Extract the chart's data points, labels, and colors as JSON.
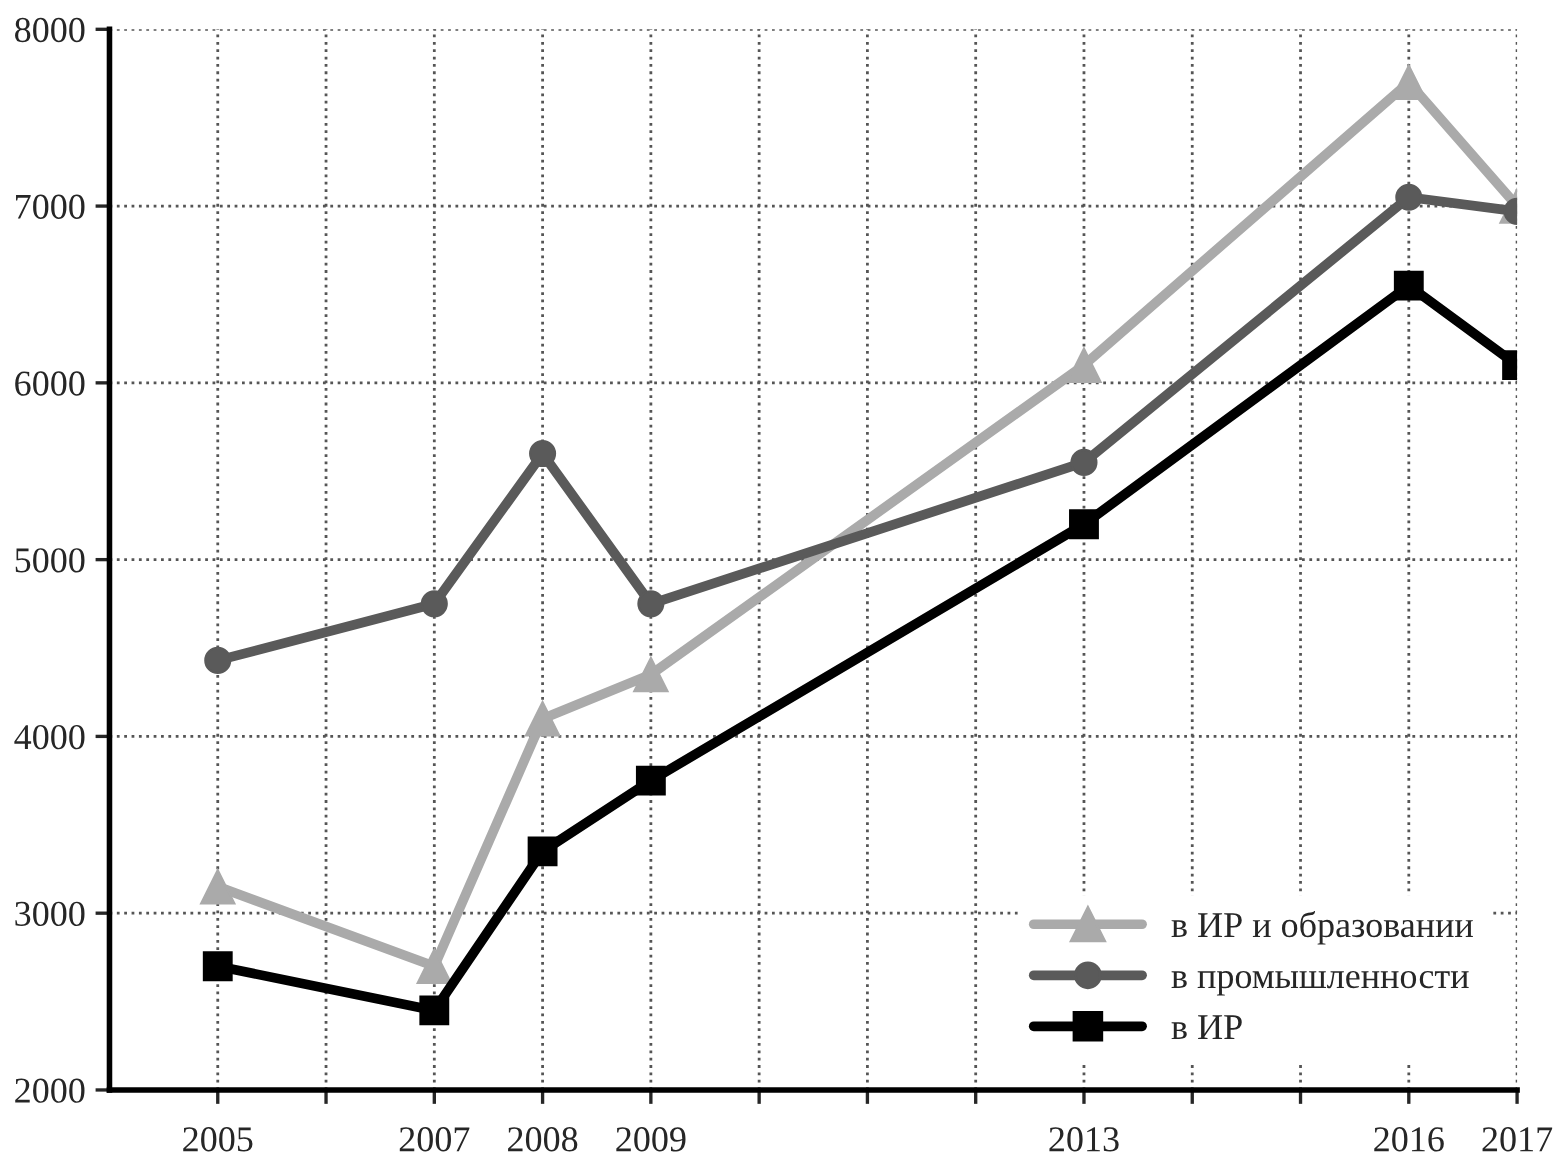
{
  "chart_data": {
    "type": "line",
    "x": [
      2005,
      2007,
      2008,
      2009,
      2013,
      2016,
      2017
    ],
    "series": [
      {
        "name": "в ИР и образовании",
        "color": "#aaaaaa",
        "marker": "triangle",
        "values": [
          3150,
          2700,
          4100,
          4350,
          6100,
          7700,
          7000
        ]
      },
      {
        "name": "в промышленности",
        "color": "#5a5a5a",
        "marker": "circle",
        "values": [
          4430,
          4750,
          5600,
          4750,
          5550,
          7050,
          6970
        ]
      },
      {
        "name": "в ИР",
        "color": "#000000",
        "marker": "square",
        "values": [
          2700,
          2450,
          3350,
          3750,
          5200,
          6550,
          6100
        ]
      }
    ],
    "xlim": [
      2004,
      2017
    ],
    "xticks": [
      2005,
      {
        "value": 2006,
        "label": null
      },
      2007,
      2008,
      2009,
      {
        "value": 2010,
        "label": null
      },
      {
        "value": 2011,
        "label": null
      },
      {
        "value": 2012,
        "label": null
      },
      2013,
      {
        "value": 2014,
        "label": null
      },
      {
        "value": 2015,
        "label": null
      },
      2016,
      2017
    ],
    "ylim": [
      2000,
      8000
    ],
    "yticks": [
      2000,
      3000,
      4000,
      5000,
      6000,
      7000,
      8000
    ],
    "grid": true,
    "legend": "bottom right",
    "line_style": "solid"
  }
}
